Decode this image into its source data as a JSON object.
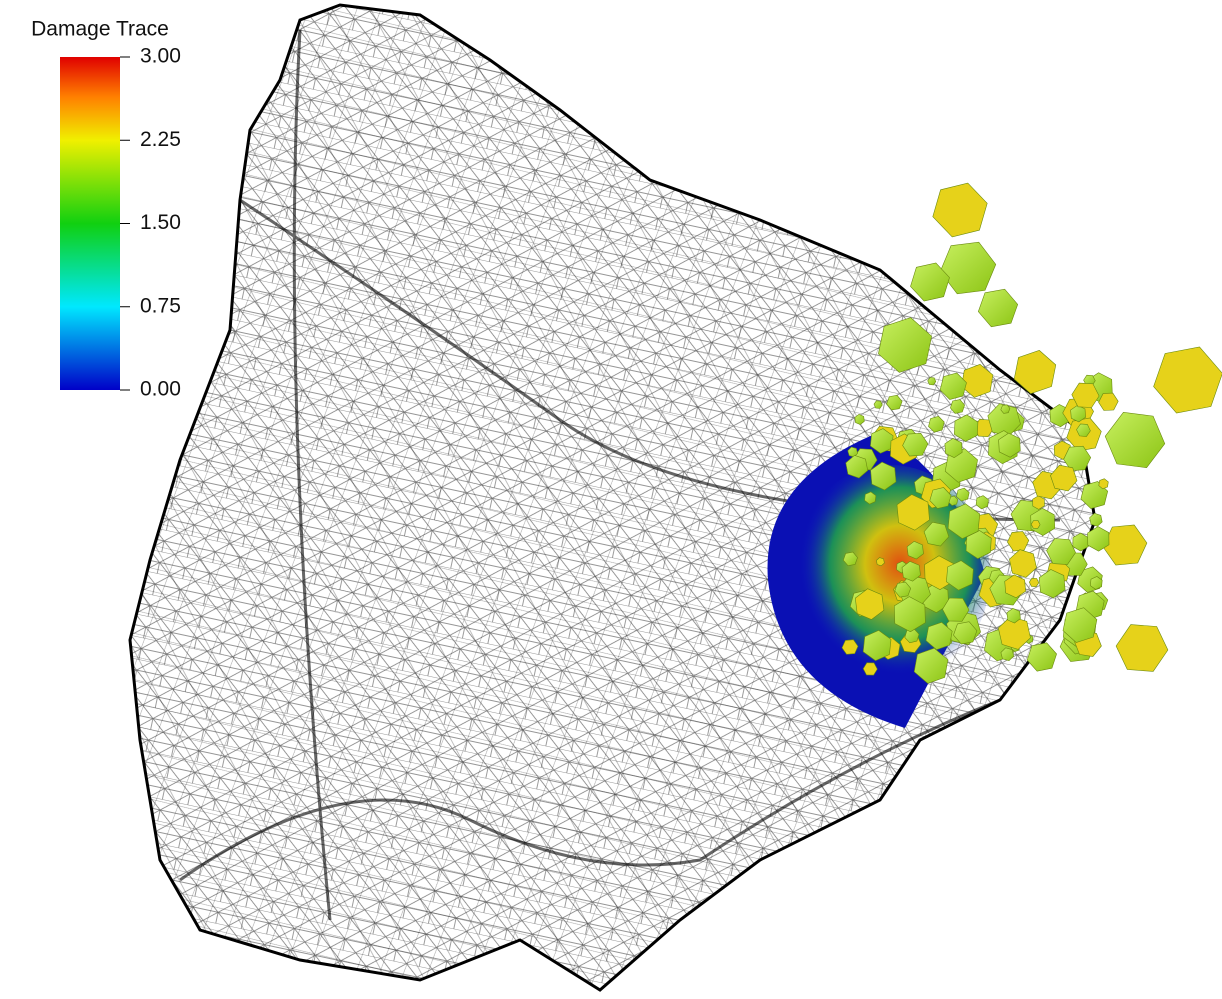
{
  "colorbar": {
    "title": "Damage Trace",
    "range": [
      0,
      3
    ],
    "ticks": [
      {
        "value": 3,
        "label": "3.00"
      },
      {
        "value": 2.25,
        "label": "2.25"
      },
      {
        "value": 1.5,
        "label": "1.50"
      },
      {
        "value": 0.75,
        "label": "0.75"
      },
      {
        "value": 0,
        "label": "0.00"
      }
    ]
  }
}
